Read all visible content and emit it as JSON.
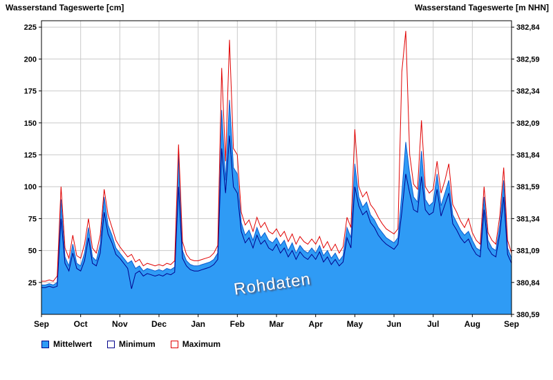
{
  "header": {
    "left": "Wasserstand Tageswerte [cm]",
    "right": "Wasserstand Tageswerte [m NHN]"
  },
  "watermark": "Rohdaten",
  "legend": {
    "items": [
      {
        "label": "Mittelwert",
        "swatch_fill": "#2F9BF5",
        "swatch_border": "#00008B"
      },
      {
        "label": "Minimum",
        "swatch_fill": "#FFFFFF",
        "swatch_border": "#00008B"
      },
      {
        "label": "Maximum",
        "swatch_fill": "#FFFFFF",
        "swatch_border": "#E00000"
      }
    ]
  },
  "chart_data": {
    "type": "area",
    "title": "Wasserstand Tageswerte",
    "xlabel": "",
    "ylabel_left": "Wasserstand Tageswerte [cm]",
    "ylabel_right": "Wasserstand Tageswerte [m NHN]",
    "categories_x": [
      "Sep",
      "Oct",
      "Nov",
      "Dec",
      "Jan",
      "Feb",
      "Mar",
      "Apr",
      "May",
      "Jun",
      "Jul",
      "Aug",
      "Sep"
    ],
    "ylim": [
      0,
      230
    ],
    "yticks_left": [
      25,
      50,
      75,
      100,
      125,
      150,
      175,
      200,
      225
    ],
    "yticks_right": [
      {
        "cm": 0,
        "label": "380,59"
      },
      {
        "cm": 25,
        "label": "380,84"
      },
      {
        "cm": 50,
        "label": "381,09"
      },
      {
        "cm": 75,
        "label": "381,34"
      },
      {
        "cm": 100,
        "label": "381,59"
      },
      {
        "cm": 125,
        "label": "381,84"
      },
      {
        "cm": 150,
        "label": "382,09"
      },
      {
        "cm": 175,
        "label": "382,34"
      },
      {
        "cm": 200,
        "label": "382,59"
      },
      {
        "cm": 225,
        "label": "382,84"
      }
    ],
    "grid_on": true,
    "grid_color": "#C9C9C9",
    "legend_position": "bottom-left",
    "x_note": "121 samples evenly spaced over 12 months (Sep to Sep), approx. every 3 days",
    "series": [
      {
        "name": "Mittelwert",
        "render": "area",
        "color": "#2F9BF5",
        "edge": "#0A5BD0",
        "values": [
          23,
          23,
          24,
          23,
          25,
          90,
          45,
          38,
          55,
          40,
          38,
          48,
          68,
          45,
          42,
          55,
          92,
          70,
          62,
          52,
          48,
          44,
          40,
          42,
          36,
          38,
          34,
          36,
          35,
          34,
          35,
          34,
          36,
          35,
          37,
          125,
          50,
          42,
          39,
          38,
          38,
          39,
          40,
          41,
          43,
          48,
          160,
          105,
          168,
          115,
          110,
          72,
          62,
          66,
          58,
          68,
          60,
          64,
          58,
          56,
          60,
          54,
          58,
          50,
          56,
          48,
          54,
          50,
          48,
          52,
          48,
          54,
          46,
          50,
          44,
          48,
          42,
          46,
          68,
          60,
          118,
          92,
          84,
          88,
          78,
          74,
          68,
          64,
          60,
          58,
          56,
          60,
          95,
          135,
          110,
          92,
          88,
          128,
          90,
          85,
          88,
          110,
          85,
          95,
          105,
          78,
          72,
          66,
          62,
          65,
          58,
          52,
          50,
          92,
          58,
          52,
          50,
          70,
          105,
          52,
          44
        ]
      },
      {
        "name": "Minimum",
        "render": "line",
        "color": "#00008B",
        "values": [
          21,
          21,
          22,
          21,
          22,
          75,
          40,
          34,
          48,
          36,
          34,
          42,
          60,
          40,
          38,
          48,
          80,
          63,
          56,
          47,
          44,
          40,
          36,
          20,
          32,
          34,
          30,
          32,
          31,
          30,
          31,
          30,
          32,
          31,
          33,
          100,
          44,
          38,
          35,
          34,
          34,
          35,
          36,
          37,
          39,
          43,
          130,
          95,
          140,
          100,
          95,
          65,
          56,
          60,
          52,
          62,
          55,
          58,
          52,
          50,
          55,
          48,
          52,
          45,
          50,
          43,
          49,
          45,
          43,
          47,
          43,
          49,
          41,
          45,
          39,
          43,
          38,
          41,
          60,
          52,
          100,
          85,
          78,
          81,
          72,
          68,
          62,
          58,
          55,
          53,
          51,
          55,
          80,
          110,
          95,
          82,
          80,
          108,
          82,
          78,
          80,
          98,
          77,
          86,
          95,
          71,
          66,
          60,
          56,
          59,
          52,
          47,
          45,
          82,
          52,
          47,
          45,
          63,
          92,
          47,
          40
        ]
      },
      {
        "name": "Maximum",
        "render": "line",
        "color": "#E00000",
        "values": [
          26,
          26,
          27,
          26,
          30,
          100,
          52,
          44,
          62,
          46,
          44,
          55,
          75,
          52,
          48,
          62,
          98,
          78,
          68,
          58,
          53,
          49,
          45,
          47,
          41,
          43,
          38,
          40,
          39,
          38,
          39,
          38,
          40,
          39,
          42,
          133,
          57,
          47,
          43,
          42,
          42,
          43,
          44,
          45,
          48,
          54,
          193,
          120,
          215,
          130,
          125,
          80,
          70,
          74,
          65,
          76,
          68,
          72,
          65,
          63,
          67,
          61,
          65,
          57,
          63,
          55,
          61,
          57,
          55,
          59,
          55,
          61,
          52,
          57,
          50,
          55,
          48,
          53,
          76,
          68,
          145,
          100,
          92,
          96,
          86,
          82,
          76,
          71,
          67,
          65,
          63,
          67,
          190,
          222,
          125,
          102,
          98,
          152,
          100,
          95,
          98,
          120,
          95,
          105,
          118,
          86,
          80,
          73,
          68,
          75,
          64,
          58,
          55,
          100,
          64,
          58,
          55,
          77,
          115,
          58,
          48
        ]
      }
    ]
  }
}
